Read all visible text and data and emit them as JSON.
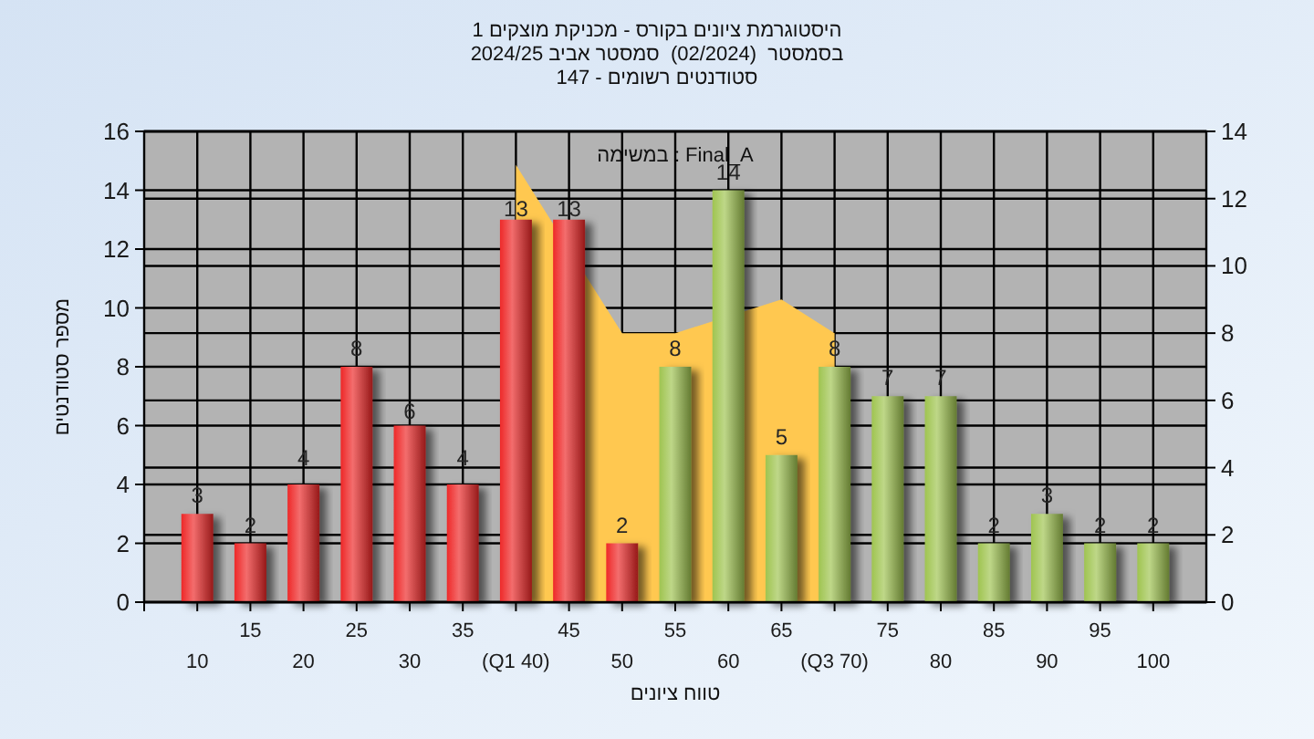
{
  "chart_data": {
    "type": "bar",
    "title": "היסטוגרמת ציונים בקורס - מכניקת מוצקים 1",
    "subtitle": "בסמסטר  (02/2024)  סמסטר אביב 2024/25\nסטודנטים רשומים - 147",
    "xlabel": "טווח ציונים",
    "ylabel": "מספר סטודנטים",
    "annotations": [
      "במשימה : Final_A"
    ],
    "categories": [
      "10",
      "15",
      "20",
      "25",
      "30",
      "35",
      "(Q1 40)",
      "45",
      "50",
      "55",
      "60",
      "65",
      "(Q3 70)",
      "75",
      "80",
      "85",
      "90",
      "95",
      "100"
    ],
    "series": [
      {
        "type": "area",
        "axis": "y2",
        "color": "#ffc850",
        "x": [
          "(Q1 40)",
          "50",
          "55",
          "65",
          "(Q3 70)"
        ],
        "values": [
          13,
          8,
          8,
          9,
          8
        ]
      },
      {
        "values": [
          3,
          2,
          4,
          8,
          6,
          4,
          13,
          13,
          2,
          8,
          14,
          5,
          8,
          7,
          7,
          2,
          3,
          2,
          2
        ],
        "value_labels": [
          "3",
          "2",
          "4",
          "8",
          "6",
          "4",
          "13",
          "13",
          "2",
          "8",
          "14",
          "5",
          "8",
          "7",
          "7",
          "2",
          "3",
          "2",
          "2"
        ],
        "colors": [
          "#ee2828",
          "#ee2828",
          "#ee2828",
          "#ee2828",
          "#ee2828",
          "#ee2828",
          "#ee2828",
          "#ee2828",
          "#ee2828",
          "#9fc450",
          "#9fc450",
          "#9fc450",
          "#9fc450",
          "#9fc450",
          "#9fc450",
          "#9fc450",
          "#9fc450",
          "#9fc450",
          "#9fc450"
        ]
      }
    ],
    "ylim": [
      0,
      16
    ],
    "yticks": [
      0,
      2,
      4,
      6,
      8,
      10,
      12,
      14,
      16
    ],
    "y2lim": [
      0,
      14
    ],
    "y2ticks": [
      0,
      2,
      4,
      6,
      8,
      10,
      12,
      14
    ],
    "grid": true
  }
}
